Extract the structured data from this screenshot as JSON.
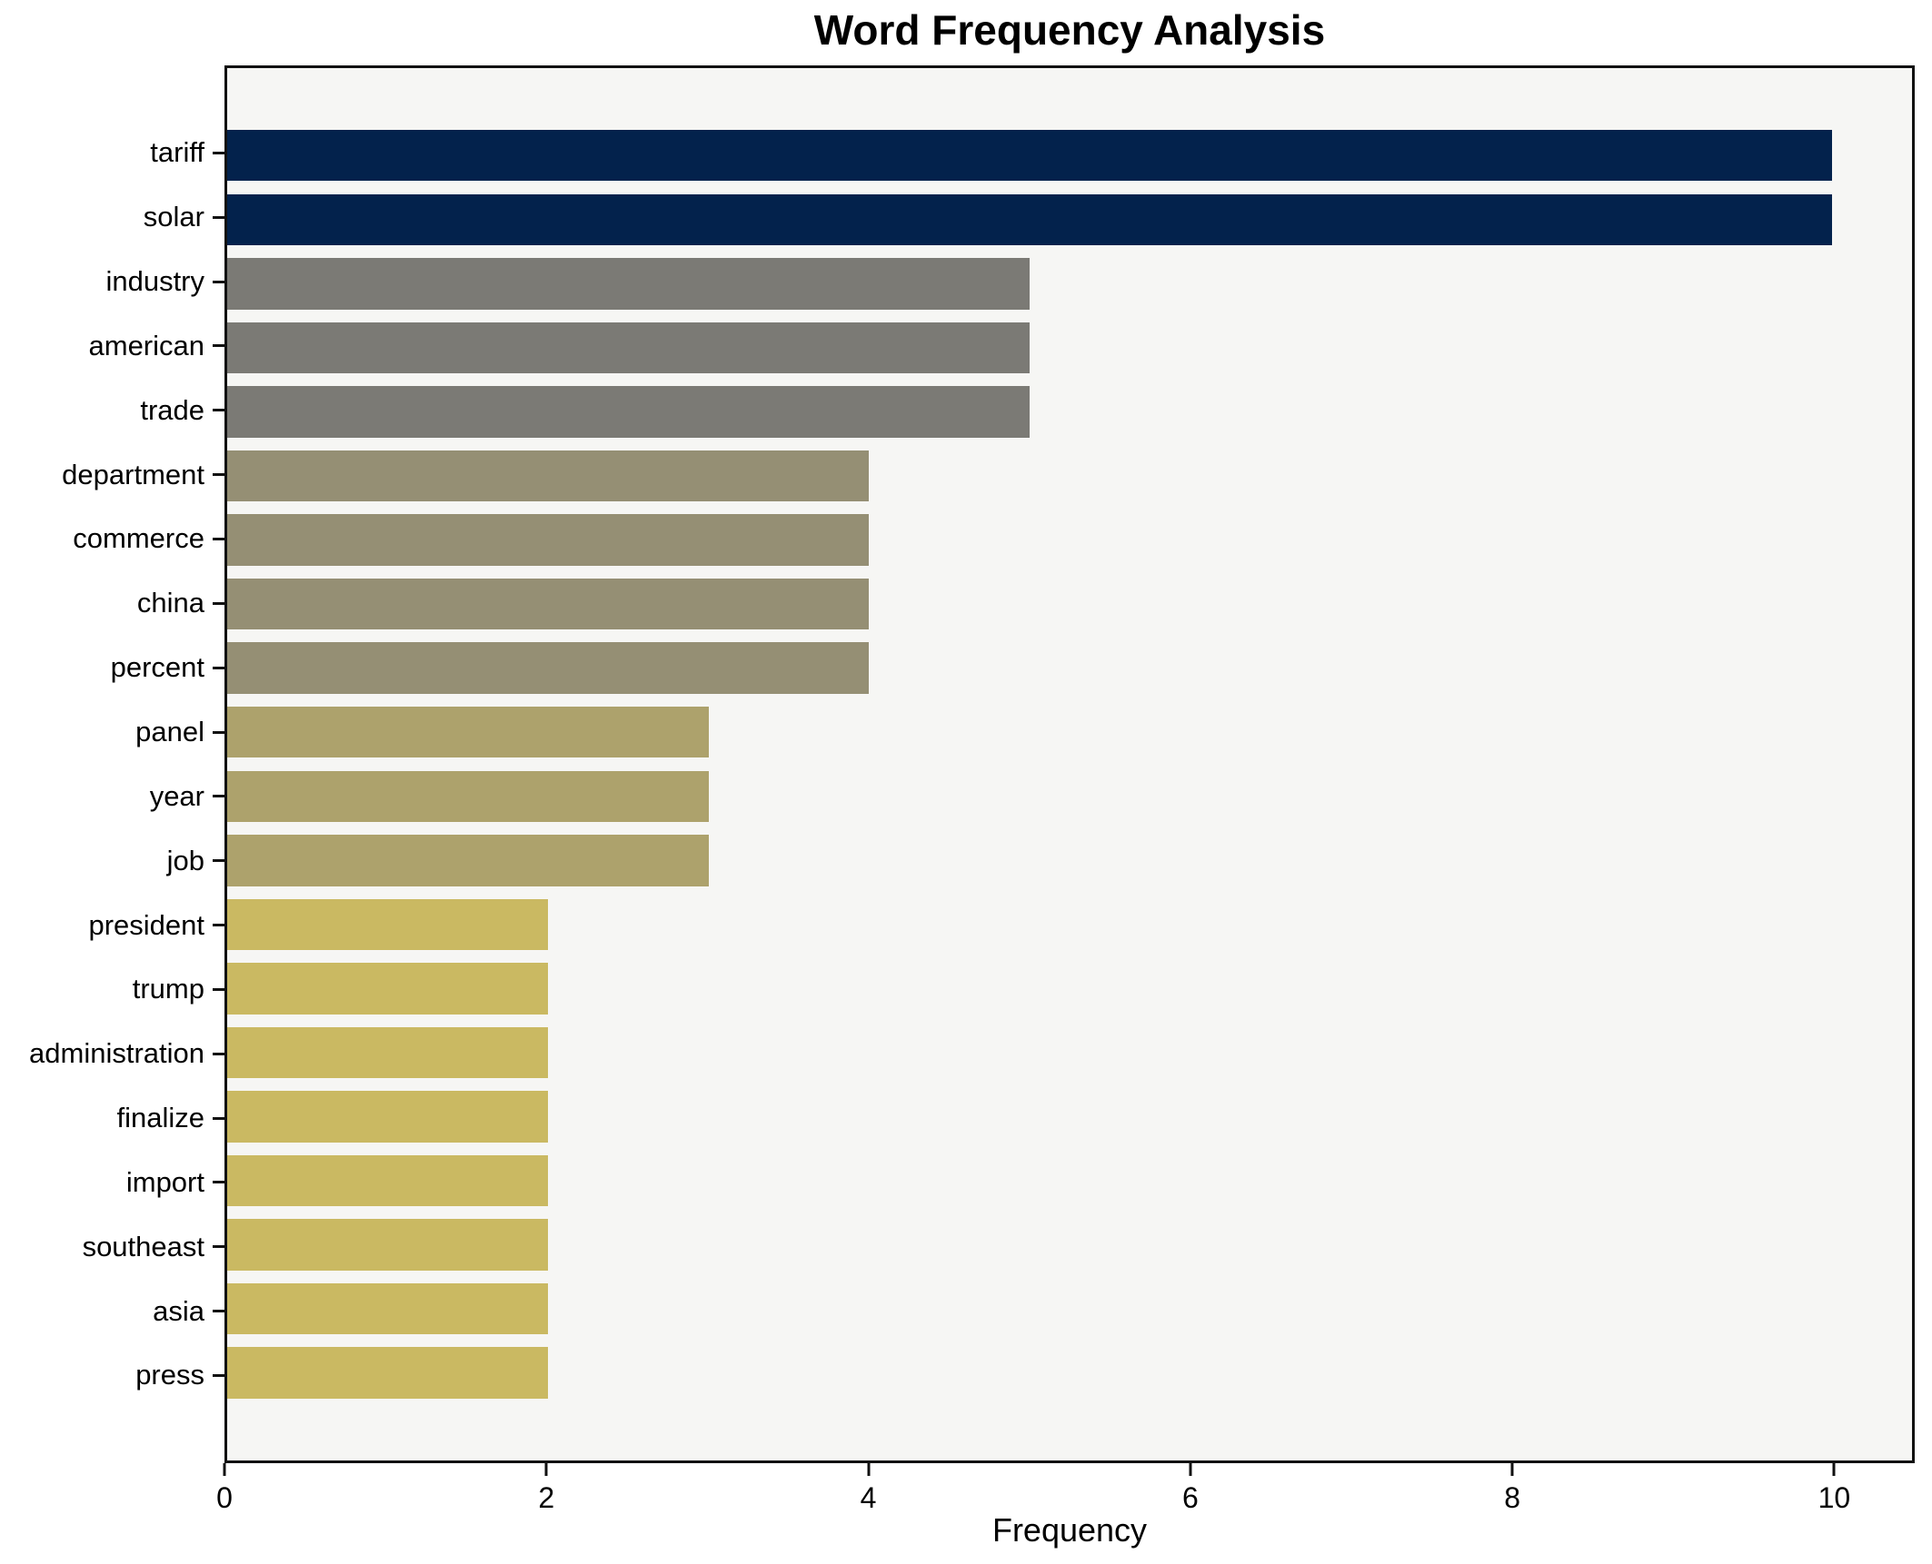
{
  "title": "Word Frequency Analysis",
  "chart_data": {
    "type": "bar",
    "orientation": "horizontal",
    "title": "Word Frequency Analysis",
    "xlabel": "Frequency",
    "ylabel": "",
    "xlim": [
      0,
      10.5
    ],
    "xticks": [
      0,
      2,
      4,
      6,
      8,
      10
    ],
    "xtick_labels": [
      "0",
      "2",
      "4",
      "6",
      "8",
      "10"
    ],
    "grid": false,
    "legend": "none",
    "categories": [
      "tariff",
      "solar",
      "industry",
      "american",
      "trade",
      "department",
      "commerce",
      "china",
      "percent",
      "panel",
      "year",
      "job",
      "president",
      "trump",
      "administration",
      "finalize",
      "import",
      "southeast",
      "asia",
      "press"
    ],
    "values": [
      10,
      10,
      5,
      5,
      5,
      4,
      4,
      4,
      4,
      3,
      3,
      3,
      2,
      2,
      2,
      2,
      2,
      2,
      2,
      2
    ],
    "bar_colors": [
      "#03224c",
      "#03224c",
      "#7b7a75",
      "#7b7a75",
      "#7b7a75",
      "#958f74",
      "#958f74",
      "#958f74",
      "#958f74",
      "#ada26c",
      "#ada26c",
      "#ada26c",
      "#cab962",
      "#cab962",
      "#cab962",
      "#cab962",
      "#cab962",
      "#cab962",
      "#cab962",
      "#cab962"
    ]
  },
  "colors": {
    "value_10": "#03224c",
    "value_5": "#7b7a75",
    "value_4": "#958f74",
    "value_3": "#ada26c",
    "value_2": "#cab962",
    "plot_background": "#f6f6f4",
    "figure_background": "#ffffff",
    "axis": "#111111",
    "text": "#000000"
  }
}
